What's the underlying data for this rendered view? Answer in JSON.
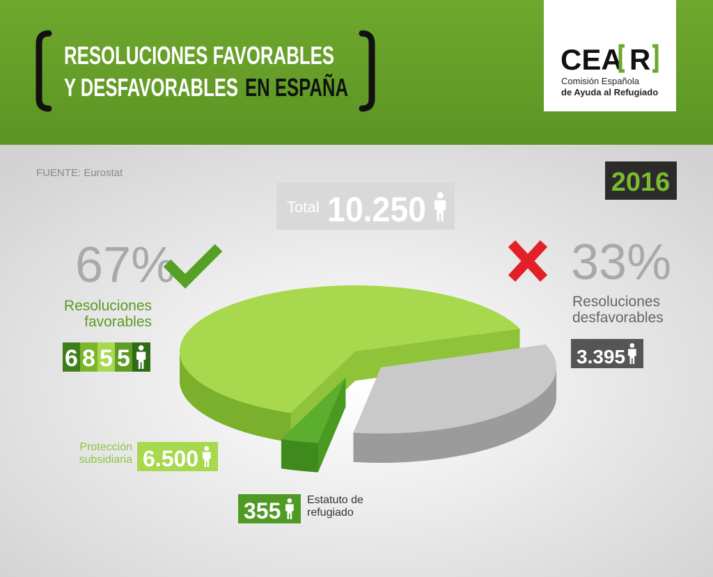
{
  "header": {
    "title_line1": "RESOLUCIONES FAVORABLES",
    "title_line2": "Y DESFAVORABLES",
    "title_highlight": "EN ESPAÑA",
    "logo": {
      "name": "CEA",
      "mark": "R",
      "subtitle": "Comisión Española",
      "subtitle_bold": "de Ayuda al Refugiado"
    }
  },
  "source": "FUENTE: Eurostat",
  "year": "2016",
  "total": {
    "label": "Total",
    "value": "10.250"
  },
  "favorable": {
    "percent": "67%",
    "label": "Resoluciones favorables",
    "count_digits": [
      "6",
      "8",
      "5",
      "5"
    ]
  },
  "unfavorable": {
    "percent": "33%"
  },
  "chart_data": {
    "type": "pie",
    "categories": [
      "Protección subsidiaria",
      "Estatuto de refugiado",
      "Resoluciones desfavorables"
    ],
    "values": [
      6500,
      355,
      3395
    ],
    "value_labels": [
      "6.500",
      "355",
      "3.395"
    ],
    "colors": [
      "#a8d84e",
      "#5cae2e",
      "#c9c9c9"
    ]
  }
}
